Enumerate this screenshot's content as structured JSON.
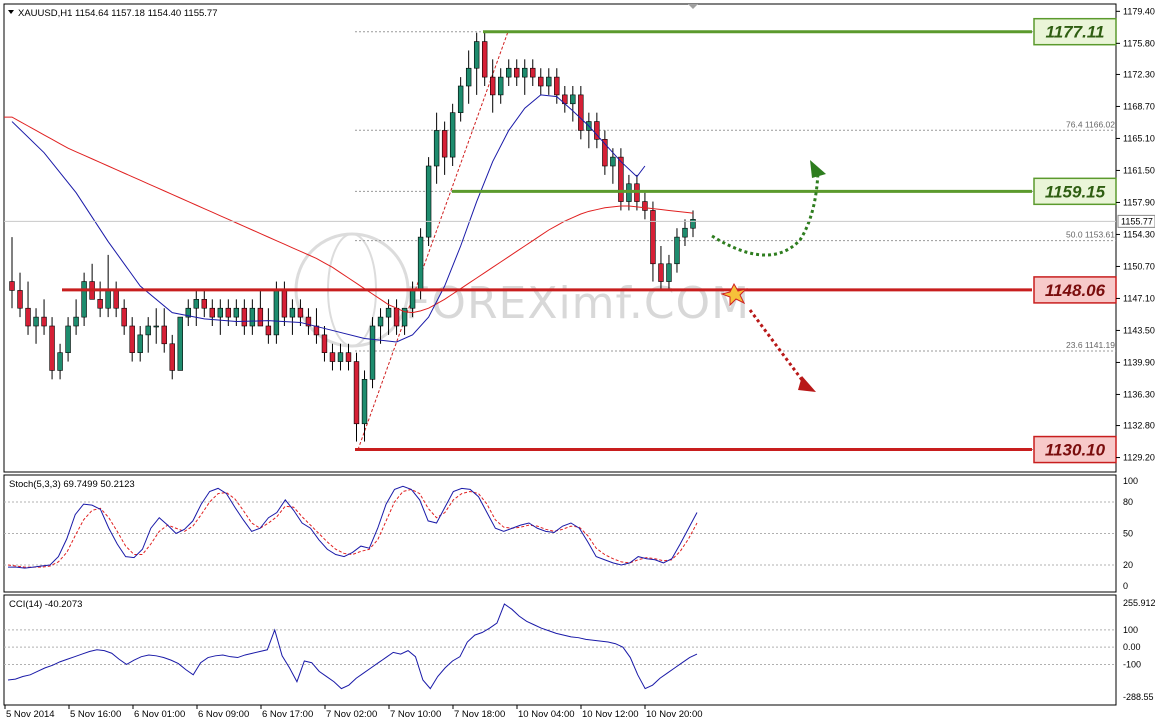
{
  "chart_data": {
    "type": "candlestick",
    "symbol_header": "XAUUSD,H1  1154.64 1157.18 1154.40 1155.77",
    "current_price": "1155.77",
    "watermark": "FOREXimf.COM",
    "price_axis": {
      "range": [
        1127.8,
        1180.0
      ],
      "ticks": [
        "1179.40",
        "1175.80",
        "1172.30",
        "1168.70",
        "1165.10",
        "1161.50",
        "1157.90",
        "1154.30",
        "1150.70",
        "1147.10",
        "1143.50",
        "1139.90",
        "1136.30",
        "1132.80",
        "1129.20"
      ]
    },
    "x_labels": [
      "5 Nov 2014",
      "5 Nov 16:00",
      "6 Nov 01:00",
      "6 Nov 09:00",
      "6 Nov 17:00",
      "7 Nov 02:00",
      "7 Nov 10:00",
      "7 Nov 18:00",
      "10 Nov 04:00",
      "10 Nov 12:00",
      "10 Nov 20:00"
    ],
    "levels": [
      {
        "label": "1177.11",
        "value": 1177.11,
        "color": "#5b9a2d",
        "bg": "#eaf5d8"
      },
      {
        "label": "1159.15",
        "value": 1159.15,
        "color": "#5b9a2d",
        "bg": "#eaf5d8"
      },
      {
        "label": "1148.06",
        "value": 1148.06,
        "color": "#c81e1e",
        "bg": "#f7c9c9"
      },
      {
        "label": "1130.10",
        "value": 1130.1,
        "color": "#c81e1e",
        "bg": "#f7c9c9"
      }
    ],
    "fibonacci": [
      {
        "label": "76.4  1166.02",
        "value": 1166.02
      },
      {
        "label": "50.0  1153.61",
        "value": 1153.61
      },
      {
        "label": "23.6  1141.19",
        "value": 1141.19
      }
    ],
    "fib_extra_levels": [
      1177.11,
      1159.15,
      1130.1
    ],
    "candles": [
      [
        1149,
        1154,
        1146,
        1148
      ],
      [
        1148,
        1150,
        1145,
        1146
      ],
      [
        1146,
        1149,
        1143,
        1144
      ],
      [
        1144,
        1146,
        1142,
        1145
      ],
      [
        1145,
        1147,
        1143,
        1144
      ],
      [
        1144,
        1145,
        1138,
        1139
      ],
      [
        1139,
        1142,
        1138,
        1141
      ],
      [
        1141,
        1145,
        1140,
        1144
      ],
      [
        1144,
        1147,
        1143,
        1145
      ],
      [
        1145,
        1150,
        1144,
        1149
      ],
      [
        1149,
        1151,
        1147,
        1147
      ],
      [
        1147,
        1149,
        1145,
        1146
      ],
      [
        1146,
        1152,
        1145,
        1148
      ],
      [
        1148,
        1149,
        1145,
        1146
      ],
      [
        1146,
        1147,
        1143,
        1144
      ],
      [
        1144,
        1145,
        1140,
        1141
      ],
      [
        1141,
        1144,
        1140,
        1143
      ],
      [
        1143,
        1145,
        1141,
        1144
      ],
      [
        1144,
        1146,
        1142,
        1144
      ],
      [
        1144,
        1146,
        1141,
        1142
      ],
      [
        1142,
        1143,
        1138,
        1139
      ],
      [
        1139,
        1145,
        1139,
        1145
      ],
      [
        1145,
        1147,
        1144,
        1146
      ],
      [
        1146,
        1148,
        1144,
        1147
      ],
      [
        1147,
        1148,
        1145,
        1146
      ],
      [
        1146,
        1147,
        1144,
        1145
      ],
      [
        1145,
        1147,
        1143,
        1146
      ],
      [
        1146,
        1147,
        1144,
        1145
      ],
      [
        1145,
        1147,
        1144,
        1146
      ],
      [
        1146,
        1147,
        1143,
        1144
      ],
      [
        1144,
        1147,
        1143,
        1146
      ],
      [
        1146,
        1148,
        1144,
        1144
      ],
      [
        1144,
        1146,
        1142,
        1143
      ],
      [
        1143,
        1149,
        1142,
        1148
      ],
      [
        1148,
        1149,
        1144,
        1145
      ],
      [
        1145,
        1147,
        1143,
        1146
      ],
      [
        1146,
        1147,
        1144,
        1145
      ],
      [
        1145,
        1146,
        1143,
        1144
      ],
      [
        1144,
        1146,
        1142,
        1143
      ],
      [
        1143,
        1144,
        1140,
        1141
      ],
      [
        1141,
        1142,
        1139,
        1140
      ],
      [
        1140,
        1142,
        1139,
        1141
      ],
      [
        1141,
        1142,
        1139,
        1140
      ],
      [
        1140,
        1141,
        1131,
        1133
      ],
      [
        1133,
        1139,
        1131,
        1138
      ],
      [
        1138,
        1145,
        1137,
        1144
      ],
      [
        1144,
        1146,
        1142,
        1145
      ],
      [
        1145,
        1147,
        1143,
        1146
      ],
      [
        1146,
        1147,
        1143,
        1144
      ],
      [
        1144,
        1146,
        1143,
        1146
      ],
      [
        1146,
        1149,
        1145,
        1148
      ],
      [
        1148,
        1155,
        1147,
        1154
      ],
      [
        1154,
        1163,
        1153,
        1162
      ],
      [
        1162,
        1168,
        1160,
        1166
      ],
      [
        1166,
        1167,
        1161,
        1163
      ],
      [
        1163,
        1169,
        1162,
        1168
      ],
      [
        1168,
        1172,
        1167,
        1171
      ],
      [
        1171,
        1175,
        1169,
        1173
      ],
      [
        1173,
        1177,
        1170,
        1176
      ],
      [
        1176,
        1177,
        1171,
        1172
      ],
      [
        1172,
        1174,
        1168,
        1170
      ],
      [
        1170,
        1173,
        1169,
        1172
      ],
      [
        1172,
        1174,
        1171,
        1173
      ],
      [
        1173,
        1174,
        1171,
        1172
      ],
      [
        1172,
        1174,
        1170,
        1173
      ],
      [
        1173,
        1174,
        1171,
        1172
      ],
      [
        1172,
        1173,
        1170,
        1171
      ],
      [
        1171,
        1173,
        1170,
        1172
      ],
      [
        1172,
        1173,
        1169,
        1170
      ],
      [
        1170,
        1171,
        1168,
        1169
      ],
      [
        1169,
        1171,
        1167,
        1170
      ],
      [
        1170,
        1171,
        1165,
        1166
      ],
      [
        1166,
        1168,
        1164,
        1167
      ],
      [
        1167,
        1168,
        1164,
        1165
      ],
      [
        1165,
        1166,
        1161,
        1162
      ],
      [
        1162,
        1164,
        1160,
        1163
      ],
      [
        1163,
        1164,
        1157,
        1158
      ],
      [
        1158,
        1161,
        1157,
        1160
      ],
      [
        1160,
        1161,
        1157,
        1158
      ],
      [
        1158,
        1159,
        1156,
        1157
      ],
      [
        1157,
        1158,
        1149,
        1151
      ],
      [
        1151,
        1153,
        1148,
        1149
      ],
      [
        1149,
        1152,
        1148,
        1151
      ],
      [
        1151,
        1155,
        1150,
        1154
      ],
      [
        1154,
        1156,
        1153,
        1155
      ],
      [
        1155,
        1157,
        1154,
        1156
      ]
    ],
    "sma_red": [
      1167.5,
      1167.0,
      1166.5,
      1166.0,
      1165.5,
      1165.0,
      1164.5,
      1164.0,
      1163.6,
      1163.2,
      1162.8,
      1162.4,
      1162.0,
      1161.6,
      1161.2,
      1160.8,
      1160.4,
      1160.0,
      1159.6,
      1159.2,
      1158.8,
      1158.4,
      1158.0,
      1157.6,
      1157.2,
      1156.8,
      1156.4,
      1156.0,
      1155.6,
      1155.2,
      1154.8,
      1154.4,
      1154.0,
      1153.6,
      1153.2,
      1152.8,
      1152.4,
      1152.0,
      1151.6,
      1151.1,
      1150.6,
      1150.0,
      1149.4,
      1148.8,
      1148.2,
      1147.6,
      1147.0,
      1146.4,
      1146.0,
      1145.6,
      1145.5,
      1145.7,
      1146.0,
      1146.5,
      1147.0,
      1147.6,
      1148.2,
      1148.8,
      1149.4,
      1150.0,
      1150.6,
      1151.2,
      1151.8,
      1152.4,
      1153.0,
      1153.6,
      1154.2,
      1154.8,
      1155.3,
      1155.8,
      1156.2,
      1156.6,
      1156.9,
      1157.1,
      1157.3,
      1157.4,
      1157.5,
      1157.5,
      1157.4,
      1157.3,
      1157.2,
      1157.1,
      1157.0,
      1156.9,
      1156.8,
      1156.7
    ],
    "sma_blue_points": [
      [
        0,
        1167.0
      ],
      [
        4,
        1163.5
      ],
      [
        8,
        1159.0
      ],
      [
        12,
        1153.5
      ],
      [
        16,
        1148.5
      ],
      [
        20,
        1145.5
      ],
      [
        24,
        1144.8
      ],
      [
        28,
        1144.5
      ],
      [
        32,
        1144.6
      ],
      [
        36,
        1144.4
      ],
      [
        40,
        1143.5
      ],
      [
        44,
        1142.6
      ],
      [
        48,
        1142.2
      ],
      [
        50,
        1143.0
      ],
      [
        52,
        1145.0
      ],
      [
        54,
        1148.5
      ],
      [
        56,
        1153.0
      ],
      [
        58,
        1158.0
      ],
      [
        60,
        1162.5
      ],
      [
        62,
        1166.0
      ],
      [
        64,
        1168.5
      ],
      [
        66,
        1170.0
      ],
      [
        68,
        1169.8
      ],
      [
        70,
        1168.2
      ],
      [
        72,
        1166.5
      ],
      [
        74,
        1164.5
      ],
      [
        76,
        1162.5
      ],
      [
        78,
        1160.8
      ],
      [
        79,
        1162.0
      ]
    ],
    "projection_up": "dotted green curve from 1155 rising toward 1162",
    "projection_down": "dotted red arrow from 1148 falling toward 1138",
    "stoch": {
      "header": "Stoch(5,3,3) 69.7499 50.2123",
      "ticks": [
        "100",
        "80",
        "50",
        "20",
        "0"
      ],
      "k": [
        18,
        18,
        17,
        18,
        19,
        20,
        28,
        45,
        68,
        78,
        77,
        73,
        55,
        40,
        28,
        27,
        35,
        55,
        65,
        58,
        50,
        54,
        62,
        78,
        90,
        93,
        88,
        75,
        63,
        52,
        55,
        65,
        70,
        82,
        72,
        60,
        55,
        44,
        35,
        30,
        28,
        32,
        38,
        36,
        55,
        78,
        92,
        95,
        92,
        82,
        62,
        60,
        75,
        90,
        93,
        92,
        85,
        70,
        55,
        52,
        55,
        58,
        60,
        55,
        52,
        51,
        57,
        60,
        55,
        42,
        28,
        25,
        22,
        20,
        22,
        28,
        26,
        25,
        22,
        26,
        40,
        55,
        70
      ],
      "d": [
        20,
        19,
        18,
        18,
        18,
        19,
        23,
        32,
        48,
        63,
        72,
        74,
        65,
        52,
        38,
        30,
        30,
        40,
        52,
        58,
        55,
        52,
        57,
        68,
        80,
        88,
        89,
        83,
        72,
        60,
        55,
        60,
        66,
        76,
        75,
        66,
        58,
        50,
        42,
        35,
        31,
        30,
        33,
        35,
        44,
        62,
        80,
        90,
        92,
        88,
        74,
        65,
        70,
        82,
        88,
        90,
        88,
        78,
        63,
        56,
        55,
        56,
        58,
        57,
        54,
        52,
        54,
        57,
        56,
        48,
        36,
        30,
        26,
        23,
        22,
        25,
        27,
        26,
        24,
        25,
        33,
        45,
        60
      ]
    },
    "cci": {
      "header": "CCI(14) -40.2073",
      "ticks": [
        "255.912",
        "100",
        "0.00",
        "-100",
        "-288.55"
      ],
      "values": [
        -190,
        -185,
        -170,
        -160,
        -140,
        -120,
        -105,
        -85,
        -70,
        -55,
        -40,
        -25,
        -15,
        -20,
        -35,
        -70,
        -100,
        -75,
        -55,
        -45,
        -50,
        -60,
        -75,
        -95,
        -130,
        -160,
        -90,
        -60,
        -50,
        -45,
        -55,
        -60,
        -45,
        -35,
        -25,
        -15,
        100,
        -50,
        -120,
        -200,
        -80,
        -90,
        -140,
        -170,
        -200,
        -240,
        -220,
        -180,
        -150,
        -120,
        -90,
        -60,
        -30,
        -40,
        -20,
        -55,
        -190,
        -240,
        -170,
        -120,
        -80,
        -55,
        30,
        70,
        85,
        110,
        140,
        250,
        220,
        180,
        150,
        130,
        110,
        95,
        80,
        70,
        60,
        55,
        45,
        40,
        35,
        30,
        20,
        0,
        -60,
        -160,
        -240,
        -220,
        -180,
        -150,
        -120,
        -90,
        -60,
        -40
      ]
    }
  }
}
